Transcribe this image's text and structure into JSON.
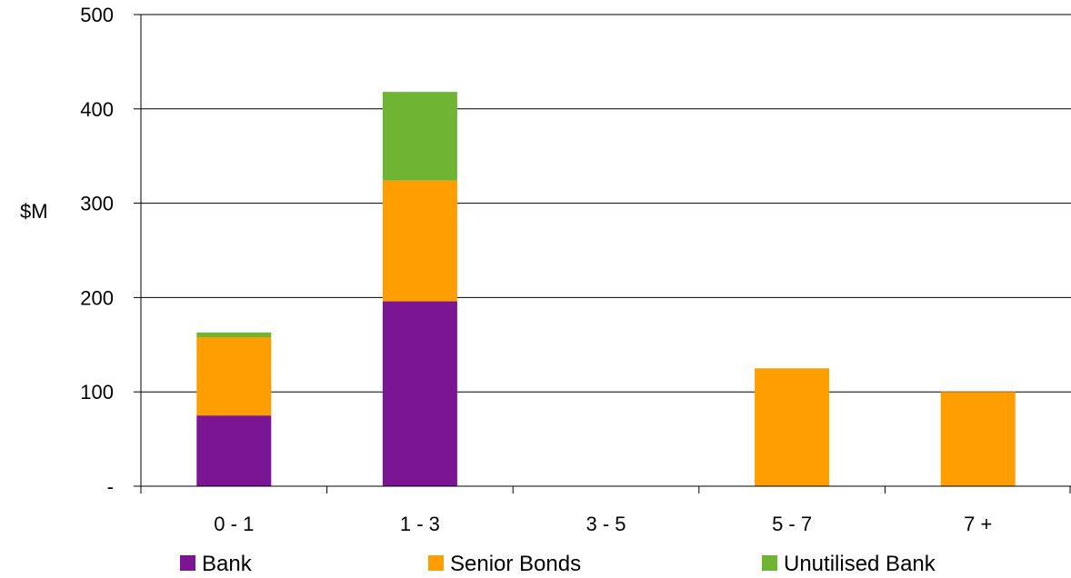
{
  "chart_data": {
    "type": "bar",
    "stacked": true,
    "categories": [
      "0 - 1",
      "1 - 3",
      "3 - 5",
      "5 - 7",
      "7 +"
    ],
    "series": [
      {
        "name": "Bank",
        "color": "#7B1594",
        "values": [
          75,
          196,
          0,
          0,
          0
        ]
      },
      {
        "name": "Senior Bonds",
        "color": "#FF9E00",
        "values": [
          83,
          128,
          0,
          125,
          100
        ]
      },
      {
        "name": "Unutilised Bank",
        "color": "#70B434",
        "values": [
          5,
          94,
          0,
          0,
          0
        ]
      }
    ],
    "ylabel": "$M",
    "ylim": [
      0,
      500
    ],
    "yticks": [
      0,
      100,
      200,
      300,
      400,
      500
    ],
    "ytick_labels": [
      "-",
      "100",
      "200",
      "300",
      "400",
      "500"
    ],
    "grid": true,
    "legend_position": "bottom"
  }
}
